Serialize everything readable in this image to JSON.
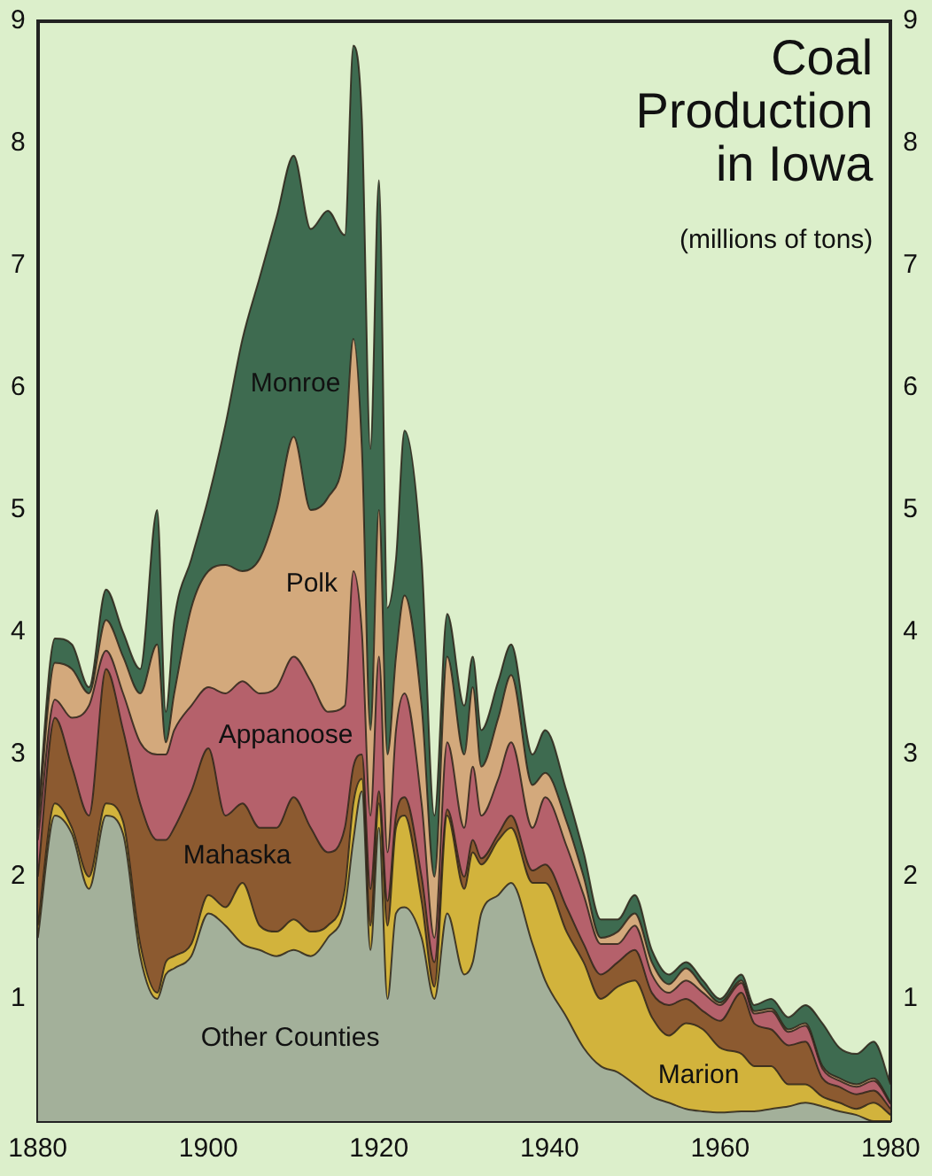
{
  "chart_data": {
    "type": "area",
    "title": "Coal Production in Iowa",
    "subtitle": "(millions of tons)",
    "stacked": true,
    "x": [
      1880,
      1882,
      1884,
      1886,
      1888,
      1890,
      1892,
      1894,
      1895,
      1896,
      1898,
      1900,
      1902,
      1904,
      1906,
      1908,
      1910,
      1912,
      1914,
      1916,
      1917,
      1918,
      1919,
      1920,
      1921,
      1922,
      1923,
      1925,
      1926.5,
      1928,
      1930,
      1931,
      1932,
      1934,
      1935.5,
      1938,
      1939.5,
      1942,
      1944,
      1946,
      1948,
      1950,
      1952,
      1954,
      1956,
      1958,
      1960,
      1962.5,
      1964,
      1966,
      1968,
      1970,
      1972,
      1974,
      1976,
      1978,
      1980
    ],
    "series": [
      {
        "name": "Other Counties",
        "color": "#a3b09a",
        "values": [
          1.5,
          2.5,
          2.35,
          1.9,
          2.5,
          2.35,
          1.35,
          1.0,
          1.2,
          1.25,
          1.35,
          1.7,
          1.6,
          1.45,
          1.4,
          1.35,
          1.4,
          1.35,
          1.5,
          1.75,
          2.3,
          2.7,
          1.4,
          2.4,
          1.0,
          1.7,
          1.75,
          1.5,
          1.0,
          1.7,
          1.2,
          1.3,
          1.7,
          1.85,
          1.95,
          1.45,
          1.15,
          0.85,
          0.6,
          0.45,
          0.4,
          0.3,
          0.2,
          0.15,
          0.1,
          0.08,
          0.07,
          0.08,
          0.08,
          0.1,
          0.12,
          0.15,
          0.12,
          0.08,
          0.05,
          0,
          0
        ]
      },
      {
        "name": "Marion",
        "color": "#d2b33c",
        "values": [
          0.1,
          0.1,
          0.05,
          0.1,
          0.1,
          0.1,
          0.1,
          0.05,
          0.1,
          0.1,
          0.1,
          0.15,
          0.15,
          0.5,
          0.2,
          0.2,
          0.25,
          0.2,
          0.1,
          0.15,
          0.3,
          0.1,
          0.2,
          0.2,
          0.6,
          0.7,
          0.75,
          0.3,
          0.1,
          0.8,
          0.7,
          0.9,
          0.4,
          0.45,
          0.45,
          0.5,
          0.8,
          0.7,
          0.7,
          0.55,
          0.7,
          0.85,
          0.65,
          0.55,
          0.7,
          0.67,
          0.53,
          0.47,
          0.37,
          0.35,
          0.18,
          0.15,
          0.08,
          0.07,
          0.05,
          0.15,
          0.05
        ]
      },
      {
        "name": "Mahaska",
        "color": "#8c5a30",
        "values": [
          0.4,
          0.7,
          0.5,
          0.5,
          1.1,
          0.75,
          1.15,
          1.25,
          1.0,
          1.05,
          1.25,
          1.2,
          0.75,
          0.65,
          0.8,
          0.85,
          1.0,
          0.85,
          0.6,
          0.5,
          0.3,
          0.2,
          0.3,
          0.1,
          0.2,
          0.1,
          0.15,
          0.2,
          0.2,
          0.05,
          0.1,
          0.1,
          0.05,
          0.05,
          0.1,
          0.1,
          0.15,
          0.2,
          0.15,
          0.2,
          0.2,
          0.25,
          0.2,
          0.25,
          0.2,
          0.15,
          0.22,
          0.5,
          0.35,
          0.3,
          0.32,
          0.35,
          0.15,
          0.13,
          0.12,
          0.1,
          0.05
        ]
      },
      {
        "name": "Appanoose",
        "color": "#b5616b",
        "values": [
          0.3,
          0.15,
          0.4,
          0.9,
          0.15,
          0.3,
          0.5,
          0.7,
          0.7,
          0.8,
          0.7,
          0.5,
          1.0,
          1.0,
          1.1,
          1.15,
          1.15,
          1.2,
          1.15,
          1.0,
          1.6,
          1.0,
          0.6,
          1.1,
          0.4,
          0.7,
          0.85,
          0.6,
          0.2,
          0.55,
          0.4,
          0.6,
          0.35,
          0.45,
          0.6,
          0.35,
          0.55,
          0.5,
          0.4,
          0.25,
          0.15,
          0.2,
          0.15,
          0.1,
          0.15,
          0.15,
          0.13,
          0.08,
          0.08,
          0.15,
          0.11,
          0.13,
          0.08,
          0.05,
          0.06,
          0.08,
          0.04
        ]
      },
      {
        "name": "Polk",
        "color": "#d3a97c",
        "values": [
          0.1,
          0.3,
          0.4,
          0.1,
          0.25,
          0.3,
          0.4,
          0.9,
          0.1,
          0.3,
          0.8,
          0.95,
          1.05,
          0.9,
          1.1,
          1.45,
          1.8,
          1.4,
          1.75,
          2.1,
          1.9,
          1.5,
          0.7,
          1.2,
          0.8,
          0.6,
          0.8,
          0.8,
          0.5,
          0.7,
          0.6,
          0.65,
          0.4,
          0.5,
          0.55,
          0.35,
          0.2,
          0.2,
          0.15,
          0.05,
          0.1,
          0.1,
          0.1,
          0.07,
          0.1,
          0.05,
          0.02,
          0.02,
          0.02,
          0.02,
          0.02,
          0.02,
          0.02,
          0.02,
          0.02,
          0.02,
          0.01
        ]
      },
      {
        "name": "Monroe",
        "color": "#3e6b50",
        "values": [
          0.1,
          0.2,
          0.2,
          0.05,
          0.25,
          0.2,
          0.2,
          1.1,
          0.25,
          0.6,
          0.4,
          0.6,
          1.15,
          1.9,
          2.3,
          2.4,
          2.3,
          2.3,
          2.35,
          1.75,
          2.4,
          2.7,
          2.3,
          2.7,
          1.2,
          0.8,
          1.35,
          1.2,
          0.5,
          0.35,
          0.4,
          0.25,
          0.3,
          0.3,
          0.25,
          0.25,
          0.35,
          0.25,
          0.2,
          0.15,
          0.1,
          0.15,
          0.1,
          0.08,
          0.05,
          0.05,
          0.03,
          0.05,
          0.05,
          0.08,
          0.1,
          0.15,
          0.35,
          0.25,
          0.25,
          0.3,
          0.15
        ]
      }
    ],
    "xlim": [
      1880,
      1980
    ],
    "xticks": [
      1880,
      1900,
      1920,
      1940,
      1960,
      1980
    ],
    "ylim": [
      0,
      9
    ],
    "yticks": [
      1,
      2,
      3,
      4,
      5,
      6,
      7,
      8,
      9
    ],
    "y2lim": [
      0,
      9
    ],
    "y2ticks": [
      1,
      2,
      3,
      4,
      5,
      6,
      7,
      8,
      9
    ]
  }
}
